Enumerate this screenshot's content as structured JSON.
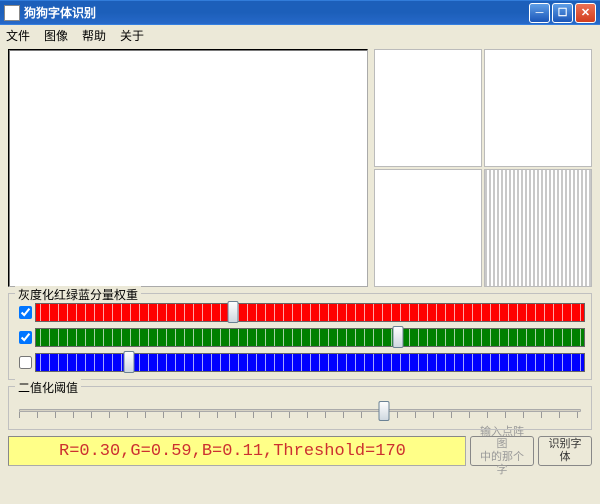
{
  "window": {
    "title": "狗狗字体识别"
  },
  "menu": {
    "file": "文件",
    "image": "图像",
    "help": "帮助",
    "about": "关于"
  },
  "groups": {
    "rgb_weights": "灰度化红绿蓝分量权重",
    "threshold": "二值化阈值"
  },
  "sliders": {
    "r": {
      "checked": true,
      "position_pct": 36,
      "track_color": "#ff0000"
    },
    "g": {
      "checked": true,
      "position_pct": 66,
      "track_color": "#008000"
    },
    "b": {
      "checked": false,
      "position_pct": 17,
      "track_color": "#0000ff"
    },
    "threshold": {
      "position_pct": 65
    }
  },
  "status": {
    "text_color": "#cc3030",
    "bg_color": "#ffff88",
    "text": "R=0.30,G=0.59,B=0.11,Threshold=170"
  },
  "buttons": {
    "hint": "输入点阵图\n中的那个字",
    "recognize": "识别字体"
  }
}
